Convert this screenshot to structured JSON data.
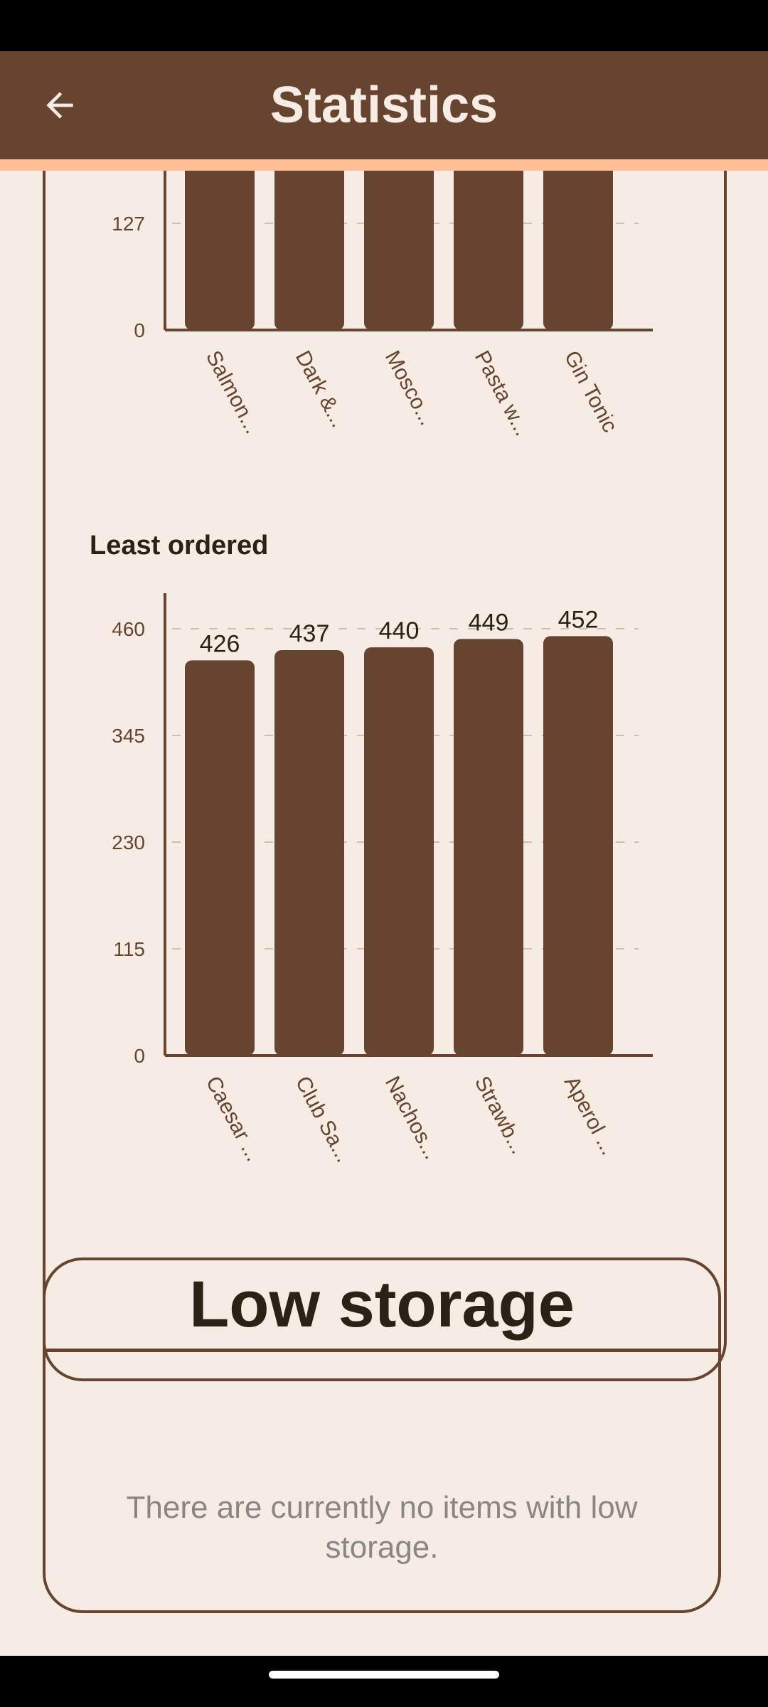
{
  "app_bar": {
    "title": "Statistics",
    "back_icon": "arrow-left-icon"
  },
  "statistics": {
    "most_ordered": {
      "chart_data": {
        "type": "bar",
        "title": "",
        "categories": [
          "Salmon...",
          "Dark &...",
          "Mosco...",
          "Pasta w...",
          "Gin Tonic"
        ],
        "yticks": [
          0,
          127
        ],
        "ylim": [
          0,
          508
        ],
        "grid": true,
        "values": [
          508,
          508,
          508,
          508,
          508
        ]
      }
    },
    "least_ordered": {
      "label": "Least ordered",
      "chart_data": {
        "type": "bar",
        "title": "Least ordered",
        "categories": [
          "Caesar ...",
          "Club Sa...",
          "Nachos...",
          "Strawb...",
          "Aperol ..."
        ],
        "values": [
          426,
          437,
          440,
          449,
          452
        ],
        "yticks": [
          0,
          115,
          230,
          345,
          460
        ],
        "ylim": [
          0,
          460
        ],
        "grid": true
      }
    }
  },
  "low_storage": {
    "title": "Low storage",
    "message": "There are currently no items with low storage."
  },
  "colors": {
    "primary": "#674430",
    "accent": "#fcbf96",
    "background": "#f6ece3",
    "text_dark": "#2b2115",
    "text_muted": "#8c8683"
  }
}
